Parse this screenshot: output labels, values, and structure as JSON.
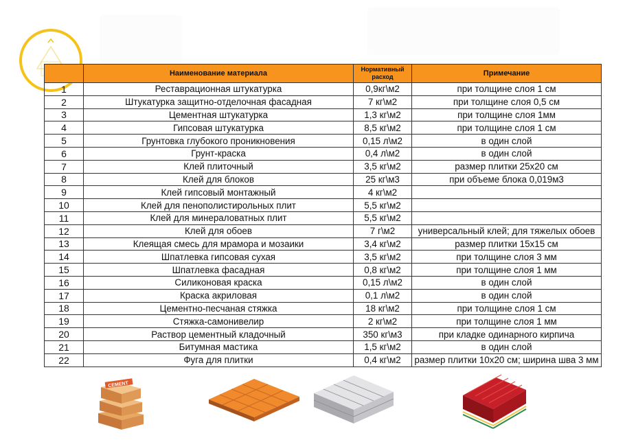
{
  "table": {
    "headers": {
      "number": "",
      "name": "Наименование материала",
      "rate": "Нормативный расход",
      "note": "Примечание"
    },
    "rows": [
      {
        "n": "1",
        "name": "Реставрационная штукатурка",
        "rate": "0,9кг\\м2",
        "note": "при толщине слоя 1 см"
      },
      {
        "n": "2",
        "name": "Штукатурка защитно-отделочная фасадная",
        "rate": "7 кг\\м2",
        "note": "при толщине слоя 0,5 см"
      },
      {
        "n": "3",
        "name": "Цементная штукатурка",
        "rate": "1,3 кг\\м2",
        "note": "при толщине слоя 1мм"
      },
      {
        "n": "4",
        "name": "Гипсовая штукатурка",
        "rate": "8,5 кг\\м2",
        "note": "при толщине слоя 1 см"
      },
      {
        "n": "5",
        "name": "Грунтовка глубокого проникновения",
        "rate": "0,15 л\\м2",
        "note": "в один слой"
      },
      {
        "n": "6",
        "name": "Грунт-краска",
        "rate": "0,4 л\\м2",
        "note": "в один слой"
      },
      {
        "n": "7",
        "name": "Клей плиточный",
        "rate": "3,5 кг\\м2",
        "note": "размер плитки 25х20 см"
      },
      {
        "n": "8",
        "name": "Клей для блоков",
        "rate": "25 кг\\м3",
        "note": "при объеме блока 0,019м3"
      },
      {
        "n": "9",
        "name": "Клей гипсовый монтажный",
        "rate": "4 кг\\м2",
        "note": ""
      },
      {
        "n": "10",
        "name": "Клей для пенополистирольных плит",
        "rate": "5,5 кг\\м2",
        "note": ""
      },
      {
        "n": "11",
        "name": "Клей для минераловатных плит",
        "rate": "5,5 кг\\м2",
        "note": ""
      },
      {
        "n": "12",
        "name": "Клей для обоев",
        "rate": "7 г\\м2",
        "note": "универсальный клей; для тяжелых обоев"
      },
      {
        "n": "13",
        "name": "Клеящая смесь для мрамора и мозаики",
        "rate": "3,4 кг\\м2",
        "note": "размер плитки 15х15 см"
      },
      {
        "n": "14",
        "name": "Шпатлевка гипсовая сухая",
        "rate": "3,5 кг\\м2",
        "note": "при толщине слоя 3 мм"
      },
      {
        "n": "15",
        "name": "Шпатлевка фасадная",
        "rate": "0,8 кг\\м2",
        "note": "при толщине слоя 1 мм"
      },
      {
        "n": "16",
        "name": "Силиконовая краска",
        "rate": "0,15 л\\м2",
        "note": "в один слой"
      },
      {
        "n": "17",
        "name": "Краска акриловая",
        "rate": "0,1 л\\м2",
        "note": "в один слой"
      },
      {
        "n": "18",
        "name": "Цементно-песчаная стяжка",
        "rate": "18 кг\\м2",
        "note": "при толщине слоя 1 см"
      },
      {
        "n": "19",
        "name": "Стяжка-самонивелир",
        "rate": "2 кг\\м2",
        "note": "при толщине слоя 1 мм"
      },
      {
        "n": "20",
        "name": "Раствор цементный кладочный",
        "rate": "350 кг\\м3",
        "note": "при кладке одинарного кирпича"
      },
      {
        "n": "21",
        "name": "Битумная мастика",
        "rate": "1,5 кг\\м2",
        "note": "в один слой"
      },
      {
        "n": "22",
        "name": "Фуга для плитки",
        "rate": "0,4 кг\\м2",
        "note": "размер плитки 10х20 см; ширина шва 3 мм"
      }
    ]
  },
  "images": {
    "cement_bag_text": "CEMENT"
  },
  "colors": {
    "header_bg": "#f7941d",
    "logo_ring": "#f5c21a"
  }
}
